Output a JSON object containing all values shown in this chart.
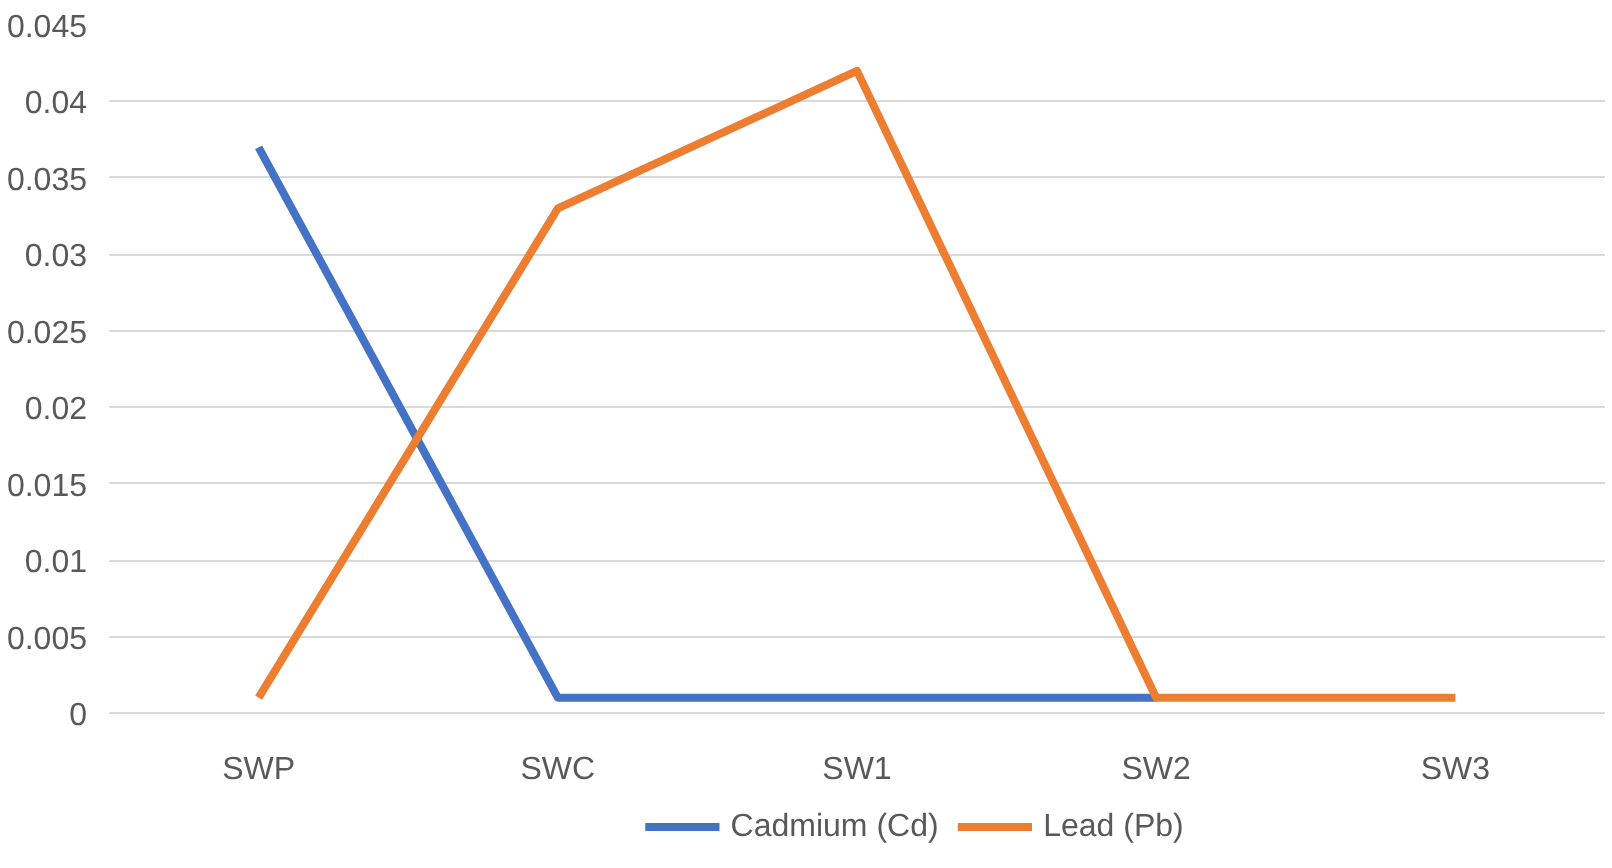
{
  "chart_data": {
    "type": "line",
    "categories": [
      "SWP",
      "SWC",
      "SW1",
      "SW2",
      "SW3"
    ],
    "series": [
      {
        "name": "Cadmium (Cd)",
        "color": "#4472c4",
        "values": [
          0.037,
          0.001,
          0.001,
          0.001,
          null
        ]
      },
      {
        "name": "Lead (Pb)",
        "color": "#ed7d31",
        "values": [
          0.001,
          0.033,
          0.042,
          0.001,
          0.001
        ]
      }
    ],
    "ylim": [
      0,
      0.045
    ],
    "yticks": [
      0,
      0.005,
      0.01,
      0.015,
      0.02,
      0.025,
      0.03,
      0.035,
      0.04,
      0.045
    ],
    "grid": "y",
    "legend": "bottom",
    "marker": "none",
    "line_style": "solid"
  }
}
